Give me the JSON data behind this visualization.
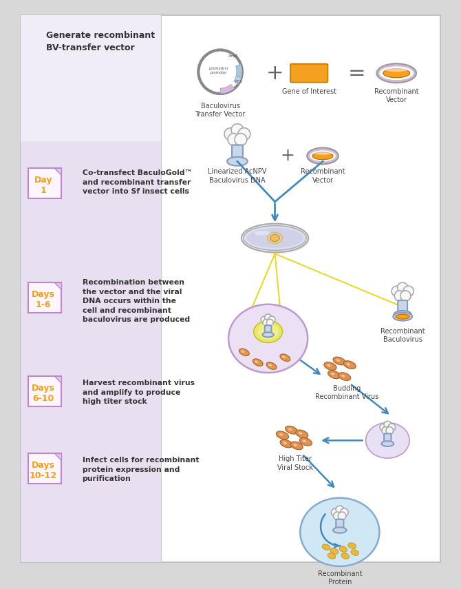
{
  "bg_outer": "#d8d8d8",
  "bg_inner": "#ffffff",
  "left_panel_color": "#e8e0f0",
  "left_panel_top_color": "#f0ecf8",
  "border_color": "#bbbbbb",
  "title_top": "Generate recombinant\nBV-transfer vector",
  "step1_days": "Day\n1",
  "step1_text": "Co-transfect BaculoGold™\nand recombinant transfer\nvector into Sf insect cells",
  "step2_days": "Days\n1-6",
  "step2_text": "Recombination between\nthe vector and the viral\nDNA occurs within the\ncell and recombinant\nbaculovirus are produced",
  "step3_days": "Days\n6-10",
  "step3_text": "Harvest recombinant virus\nand amplify to produce\nhigh titer stock",
  "step4_days": "Days\n10-12",
  "step4_text": "Infect cells for recombinant\nprotein expression and\npurification",
  "orange": "#f5a020",
  "purple_light": "#c8a8d0",
  "blue_arrow": "#4488bb",
  "yellow_line": "#e8d830",
  "text_dark": "#333333",
  "day_text_color": "#f0a020",
  "day_border_color": "#bb88cc",
  "label_baculovirus": "Baculovirus\nTransfer Vector",
  "label_gene": "Gene of Interest",
  "label_recomb_vector": "Recombinant\nVector",
  "label_linearized": "Linearized AcNPV\nBaculovirus DNA",
  "label_recomb_vector2": "Recombinant\nVector",
  "label_recomb_baculovirus": "Recombinant\nBaculovirus",
  "label_budding": "Budding\nRecombinant Virus",
  "label_high_titer": "High Titer\nViral Stock",
  "label_recomb_protein": "Recombinant\nProtein"
}
